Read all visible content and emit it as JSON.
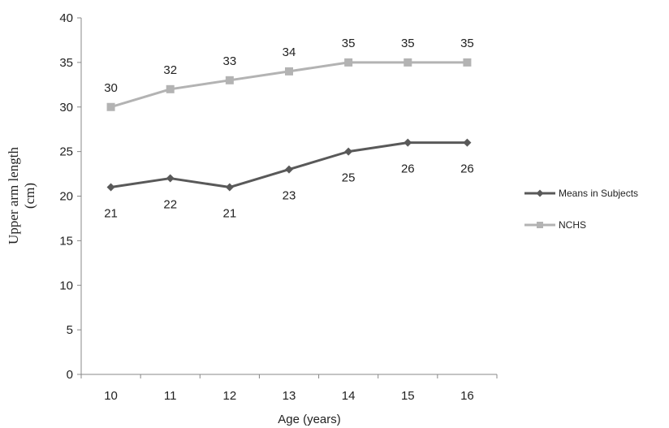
{
  "chart_data": {
    "type": "line",
    "x": [
      10,
      11,
      12,
      13,
      14,
      15,
      16
    ],
    "categories": [
      "10",
      "11",
      "12",
      "13",
      "14",
      "15",
      "16"
    ],
    "xlabel": "Age (years)",
    "ylabel": [
      "Upper arm length",
      "(cm)"
    ],
    "ylim": [
      0,
      40
    ],
    "yticks": [
      "0",
      "5",
      "10",
      "15",
      "20",
      "25",
      "30",
      "35",
      "40"
    ],
    "grid": false,
    "legend_position": "right",
    "series": [
      {
        "name": "Means in Subjects",
        "values": [
          21,
          22,
          21,
          23,
          25,
          26,
          26
        ],
        "labels": [
          "21",
          "22",
          "21",
          "23",
          "25",
          "26",
          "26"
        ],
        "color": "#595959",
        "marker": "diamond",
        "label_position": "below"
      },
      {
        "name": "NCHS",
        "values": [
          30,
          32,
          33,
          34,
          35,
          35,
          35
        ],
        "labels": [
          "30",
          "32",
          "33",
          "34",
          "35",
          "35",
          "35"
        ],
        "color": "#b3b3b3",
        "marker": "square",
        "label_position": "above"
      }
    ]
  }
}
